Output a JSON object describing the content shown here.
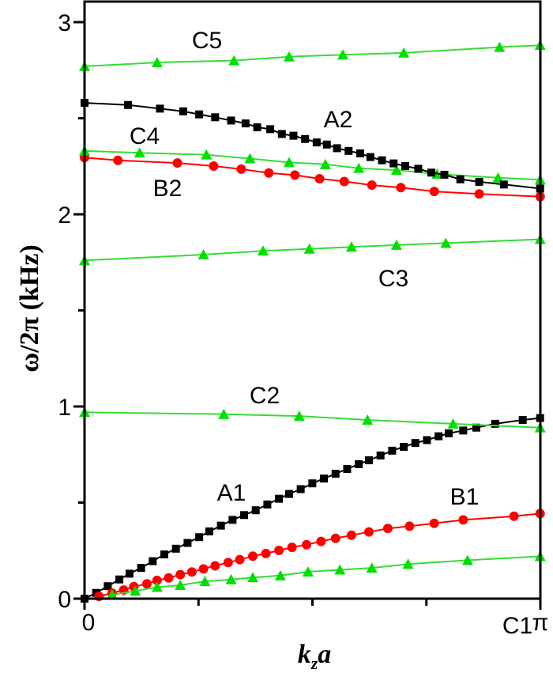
{
  "chart_data": {
    "type": "line",
    "title": "",
    "xlabel": "k_z a",
    "xlabel_main": "k",
    "xlabel_sub": "z",
    "xlabel_tail": "a",
    "ylabel": "ω/2π (kHz)",
    "xlim": [
      0,
      3.1416
    ],
    "ylim": [
      0,
      3.05
    ],
    "x_ticks": [
      {
        "value": 0,
        "label": "0"
      },
      {
        "value": 3.1416,
        "label": "π"
      }
    ],
    "x_minor_ticks": [
      0.7854,
      1.5708,
      2.3562
    ],
    "y_ticks": [
      {
        "value": 0,
        "label": "0"
      },
      {
        "value": 1,
        "label": "1"
      },
      {
        "value": 2,
        "label": "2"
      },
      {
        "value": 3,
        "label": "3"
      }
    ],
    "y_minor_ticks": [
      0.5,
      1.5,
      2.5
    ],
    "grid": false,
    "colors": {
      "A": "#000000",
      "B": "#ff0000",
      "C": "#00e000",
      "C_line": "#33dd33"
    },
    "series": [
      {
        "name": "A1",
        "marker": "square",
        "color": "#000000",
        "x": [
          0,
          0.08,
          0.16,
          0.24,
          0.31,
          0.39,
          0.47,
          0.55,
          0.63,
          0.71,
          0.79,
          0.86,
          0.94,
          1.02,
          1.1,
          1.18,
          1.26,
          1.34,
          1.41,
          1.49,
          1.57,
          1.65,
          1.73,
          1.81,
          1.89,
          1.96,
          2.04,
          2.12,
          2.2,
          2.28,
          2.36,
          2.44,
          2.51,
          2.61,
          2.7,
          2.83,
          3.02,
          3.14
        ],
        "y": [
          0,
          0.03,
          0.065,
          0.1,
          0.13,
          0.16,
          0.195,
          0.23,
          0.26,
          0.29,
          0.32,
          0.35,
          0.38,
          0.41,
          0.435,
          0.46,
          0.49,
          0.52,
          0.545,
          0.57,
          0.6,
          0.625,
          0.65,
          0.675,
          0.7,
          0.72,
          0.745,
          0.77,
          0.79,
          0.81,
          0.825,
          0.845,
          0.86,
          0.875,
          0.89,
          0.91,
          0.93,
          0.94
        ]
      },
      {
        "name": "B1",
        "marker": "circle",
        "color": "#ff0000",
        "x": [
          0.1,
          0.19,
          0.27,
          0.34,
          0.43,
          0.5,
          0.58,
          0.66,
          0.74,
          0.82,
          0.9,
          0.99,
          1.07,
          1.16,
          1.25,
          1.34,
          1.43,
          1.53,
          1.63,
          1.73,
          1.84,
          1.96,
          2.09,
          2.24,
          2.41,
          2.61,
          2.96,
          3.14
        ],
        "y": [
          0.012,
          0.029,
          0.045,
          0.063,
          0.077,
          0.095,
          0.108,
          0.125,
          0.139,
          0.155,
          0.171,
          0.188,
          0.203,
          0.221,
          0.235,
          0.251,
          0.267,
          0.281,
          0.298,
          0.314,
          0.33,
          0.347,
          0.365,
          0.377,
          0.392,
          0.41,
          0.429,
          0.443
        ]
      },
      {
        "name": "C1",
        "marker": "triangle",
        "color": "#00e000",
        "x": [
          0.19,
          0.35,
          0.5,
          0.66,
          0.83,
          1.01,
          1.16,
          1.35,
          1.54,
          1.76,
          1.98,
          2.23,
          2.64,
          3.14
        ],
        "y": [
          0.02,
          0.04,
          0.06,
          0.07,
          0.09,
          0.1,
          0.11,
          0.12,
          0.14,
          0.15,
          0.16,
          0.18,
          0.2,
          0.22
        ]
      },
      {
        "name": "C2",
        "marker": "triangle",
        "color": "#00e000",
        "x": [
          0,
          0.96,
          1.48,
          1.95,
          2.54,
          3.14
        ],
        "y": [
          0.97,
          0.96,
          0.95,
          0.93,
          0.91,
          0.89
        ]
      },
      {
        "name": "C3",
        "marker": "triangle",
        "color": "#00e000",
        "x": [
          0,
          0.82,
          1.23,
          1.55,
          1.84,
          2.15,
          2.49,
          3.14
        ],
        "y": [
          1.76,
          1.79,
          1.81,
          1.82,
          1.83,
          1.84,
          1.85,
          1.87
        ]
      },
      {
        "name": "B2",
        "marker": "circle",
        "color": "#ff0000",
        "x": [
          0,
          0.23,
          0.64,
          0.89,
          1.08,
          1.27,
          1.45,
          1.62,
          1.79,
          1.98,
          2.18,
          2.41,
          2.72,
          3.14
        ],
        "y": [
          2.295,
          2.281,
          2.267,
          2.251,
          2.235,
          2.215,
          2.204,
          2.185,
          2.171,
          2.152,
          2.139,
          2.119,
          2.106,
          2.092
        ]
      },
      {
        "name": "C4",
        "marker": "triangle",
        "color": "#00e000",
        "x": [
          0,
          0.38,
          0.84,
          1.14,
          1.41,
          1.66,
          1.89,
          2.15,
          2.43,
          2.85,
          3.14
        ],
        "y": [
          2.33,
          2.32,
          2.31,
          2.29,
          2.27,
          2.26,
          2.24,
          2.23,
          2.21,
          2.19,
          2.18
        ]
      },
      {
        "name": "A2",
        "marker": "square",
        "color": "#000000",
        "x": [
          0,
          0.3,
          0.52,
          0.68,
          0.79,
          0.9,
          1.01,
          1.11,
          1.19,
          1.28,
          1.36,
          1.44,
          1.52,
          1.6,
          1.67,
          1.74,
          1.82,
          1.9,
          1.97,
          2.05,
          2.13,
          2.21,
          2.3,
          2.39,
          2.48,
          2.59,
          2.72,
          2.89,
          3.14
        ],
        "y": [
          2.58,
          2.569,
          2.55,
          2.536,
          2.52,
          2.505,
          2.488,
          2.473,
          2.453,
          2.443,
          2.418,
          2.409,
          2.392,
          2.374,
          2.363,
          2.344,
          2.33,
          2.317,
          2.298,
          2.281,
          2.265,
          2.251,
          2.237,
          2.217,
          2.206,
          2.182,
          2.169,
          2.155,
          2.134
        ]
      },
      {
        "name": "C5",
        "marker": "triangle",
        "color": "#00e000",
        "x": [
          0,
          0.5,
          1.03,
          1.41,
          1.78,
          2.2,
          2.86,
          3.14
        ],
        "y": [
          2.77,
          2.79,
          2.8,
          2.82,
          2.83,
          2.84,
          2.87,
          2.88
        ]
      }
    ],
    "annotations": [
      "C5",
      "A2",
      "C4",
      "B2",
      "C3",
      "C2",
      "A1",
      "B1",
      "C1"
    ]
  }
}
